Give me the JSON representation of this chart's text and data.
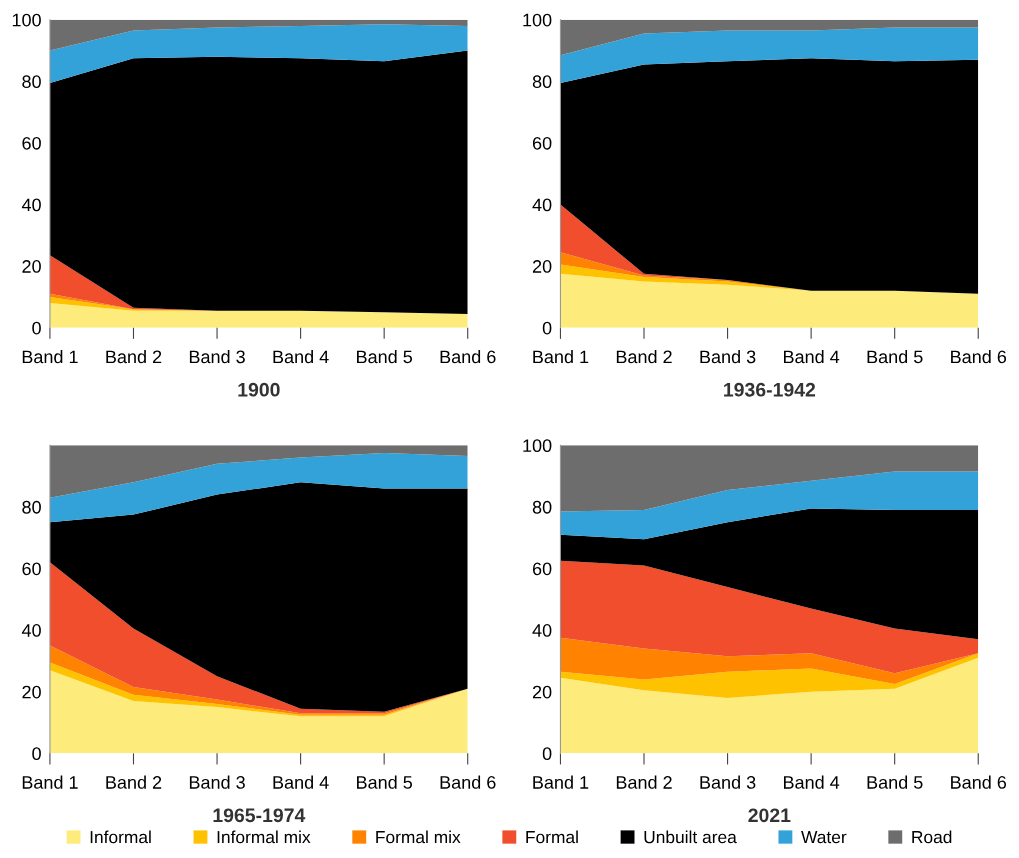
{
  "chart_data": [
    {
      "type": "area",
      "stacked": true,
      "title": "1900",
      "categories": [
        "Band 1",
        "Band 2",
        "Band 3",
        "Band 4",
        "Band 5",
        "Band 6"
      ],
      "ylim": [
        0,
        100
      ],
      "yticks": [
        0,
        20,
        40,
        60,
        80,
        100
      ],
      "grid": false,
      "series": [
        {
          "color": "#fdeb7c",
          "values": [
            8,
            5.5,
            5.5,
            5.5,
            5,
            4.5
          ]
        },
        {
          "color": "#ffc200",
          "values": [
            2,
            0.5,
            0,
            0,
            0,
            0
          ]
        },
        {
          "color": "#ff8300",
          "values": [
            1,
            0,
            0,
            0,
            0,
            0
          ]
        },
        {
          "color": "#f04e2c",
          "values": [
            12.5,
            0.5,
            0,
            0,
            0,
            0
          ]
        },
        {
          "color": "#000000",
          "values": [
            56,
            81,
            82.5,
            82,
            81.5,
            85.5
          ]
        },
        {
          "color": "#32a2d8",
          "values": [
            10.5,
            9,
            9.5,
            10.5,
            12,
            8
          ]
        },
        {
          "color": "#6d6d6d",
          "values": [
            10,
            3.5,
            2.5,
            2,
            1.5,
            2
          ]
        }
      ]
    },
    {
      "type": "area",
      "stacked": true,
      "title": "1936-1942",
      "categories": [
        "Band 1",
        "Band 2",
        "Band 3",
        "Band 4",
        "Band 5",
        "Band 6"
      ],
      "ylim": [
        0,
        100
      ],
      "yticks": [
        0,
        20,
        40,
        60,
        80,
        100
      ],
      "grid": false,
      "series": [
        {
          "color": "#fdeb7c",
          "values": [
            17.5,
            15,
            14,
            12,
            12,
            11
          ]
        },
        {
          "color": "#ffc200",
          "values": [
            3,
            1.5,
            1,
            0,
            0,
            0
          ]
        },
        {
          "color": "#ff8300",
          "values": [
            4,
            0.5,
            0.5,
            0,
            0,
            0
          ]
        },
        {
          "color": "#f04e2c",
          "values": [
            15.5,
            0.5,
            0,
            0,
            0,
            0
          ]
        },
        {
          "color": "#000000",
          "values": [
            39.5,
            68,
            71,
            75.5,
            74.5,
            76
          ]
        },
        {
          "color": "#32a2d8",
          "values": [
            9,
            10,
            10,
            9,
            11,
            10.5
          ]
        },
        {
          "color": "#6d6d6d",
          "values": [
            11.5,
            4.5,
            3.5,
            3.5,
            2.5,
            2.5
          ]
        }
      ]
    },
    {
      "type": "area",
      "stacked": true,
      "title": "1965-1974",
      "categories": [
        "Band 1",
        "Band 2",
        "Band 3",
        "Band 4",
        "Band 5",
        "Band 6"
      ],
      "ylim": [
        0,
        100
      ],
      "yticks": [
        0,
        20,
        40,
        60,
        80
      ],
      "grid": false,
      "series": [
        {
          "color": "#fdeb7c",
          "values": [
            27,
            17,
            15,
            12,
            12,
            21
          ]
        },
        {
          "color": "#ffc200",
          "values": [
            2.5,
            2,
            1,
            0.5,
            0.5,
            0
          ]
        },
        {
          "color": "#ff8300",
          "values": [
            5.5,
            2.5,
            1.5,
            0.5,
            0.5,
            0
          ]
        },
        {
          "color": "#f04e2c",
          "values": [
            27,
            19,
            7.5,
            1.5,
            0.5,
            0
          ]
        },
        {
          "color": "#000000",
          "values": [
            13,
            37,
            59,
            73.5,
            72.5,
            65
          ]
        },
        {
          "color": "#32a2d8",
          "values": [
            8,
            10.5,
            10,
            8,
            11.5,
            10.5
          ]
        },
        {
          "color": "#6d6d6d",
          "values": [
            17,
            12,
            6,
            4,
            2.5,
            3.5
          ]
        }
      ]
    },
    {
      "type": "area",
      "stacked": true,
      "title": "2021",
      "categories": [
        "Band 1",
        "Band 2",
        "Band 3",
        "Band 4",
        "Band 5",
        "Band 6"
      ],
      "ylim": [
        0,
        100
      ],
      "yticks": [
        0,
        20,
        40,
        60,
        80,
        100
      ],
      "grid": false,
      "legend": "bottom",
      "series": [
        {
          "name": "Informal",
          "color": "#fdeb7c",
          "values": [
            24.5,
            20.5,
            18,
            20,
            21,
            31
          ]
        },
        {
          "name": "Informal mix",
          "color": "#ffc200",
          "values": [
            2,
            3.5,
            8.5,
            7.5,
            1.5,
            1.5
          ]
        },
        {
          "name": "Formal mix",
          "color": "#ff8300",
          "values": [
            11,
            10,
            5,
            5,
            3.5,
            0
          ]
        },
        {
          "name": "Formal",
          "color": "#f04e2c",
          "values": [
            25,
            27,
            22.5,
            14.5,
            14.5,
            4.5
          ]
        },
        {
          "name": "Unbuilt area",
          "color": "#000000",
          "values": [
            8.5,
            8.5,
            21,
            32.5,
            38.5,
            42
          ]
        },
        {
          "name": "Water",
          "color": "#32a2d8",
          "values": [
            7.5,
            9.5,
            10.5,
            9,
            12.5,
            12.5
          ]
        },
        {
          "name": "Road",
          "color": "#6d6d6d",
          "values": [
            21.5,
            21,
            14.5,
            11.5,
            8.5,
            8.5
          ]
        }
      ]
    }
  ]
}
